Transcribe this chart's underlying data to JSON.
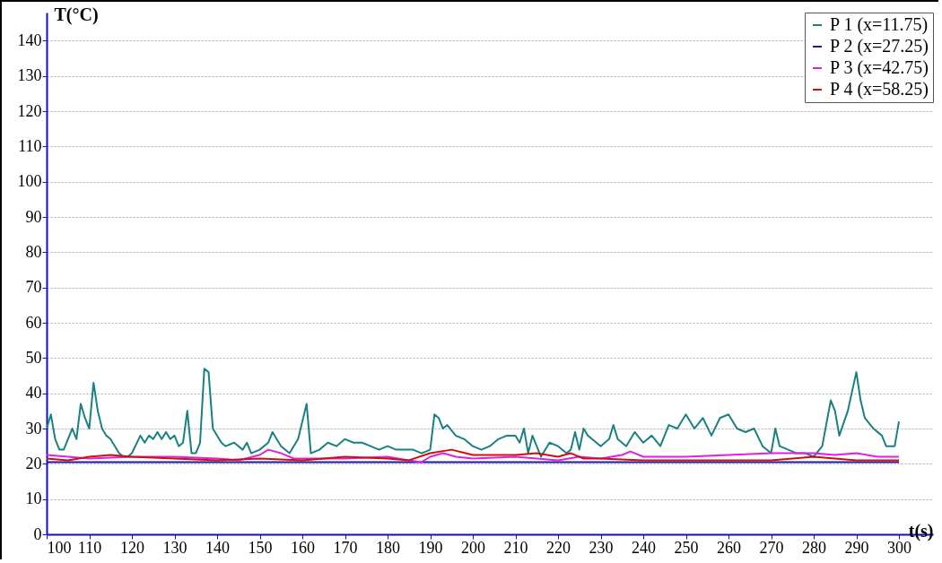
{
  "chart_data": {
    "type": "line",
    "xlabel": "t(s)",
    "ylabel": "T(°C)",
    "xlim": [
      100,
      308
    ],
    "ylim": [
      0,
      148
    ],
    "xticks": [
      100,
      110,
      120,
      130,
      140,
      150,
      160,
      170,
      180,
      190,
      200,
      210,
      220,
      230,
      240,
      250,
      260,
      270,
      280,
      290,
      300
    ],
    "yticks": [
      0,
      10,
      20,
      30,
      40,
      50,
      60,
      70,
      80,
      90,
      100,
      110,
      120,
      130,
      140
    ],
    "grid": "y",
    "legend": "top right",
    "marker": "none",
    "line_style": "solid",
    "series": [
      {
        "name": "P 1 (x=11.75)",
        "color": "#1a8080",
        "x": [
          100,
          101,
          102,
          103,
          104,
          105,
          106,
          107,
          108,
          109,
          110,
          111,
          112,
          113,
          114,
          115,
          116,
          117,
          118,
          119,
          120,
          122,
          123,
          124,
          125,
          126,
          127,
          128,
          129,
          130,
          131,
          132,
          133,
          134,
          135,
          136,
          137,
          138,
          139,
          140,
          141,
          142,
          144,
          146,
          147,
          148,
          150,
          152,
          153,
          155,
          157,
          159,
          160,
          161,
          162,
          164,
          166,
          168,
          170,
          172,
          174,
          176,
          178,
          180,
          182,
          184,
          186,
          188,
          190,
          191,
          192,
          193,
          194,
          196,
          198,
          200,
          202,
          204,
          206,
          208,
          210,
          211,
          212,
          213,
          214,
          216,
          218,
          220,
          222,
          223,
          224,
          225,
          226,
          227,
          228,
          230,
          232,
          233,
          234,
          236,
          238,
          240,
          242,
          244,
          246,
          248,
          250,
          252,
          254,
          256,
          258,
          260,
          262,
          264,
          266,
          268,
          270,
          271,
          272,
          274,
          276,
          278,
          280,
          282,
          284,
          285,
          286,
          288,
          290,
          291,
          292,
          294,
          296,
          297,
          299,
          300
        ],
        "values": [
          30,
          34,
          27,
          24,
          24,
          27,
          30,
          27,
          37,
          33,
          30,
          43,
          35,
          30,
          28,
          27,
          25,
          23,
          22,
          22,
          23,
          28,
          26,
          28,
          27,
          29,
          27,
          29,
          27,
          28,
          25,
          26,
          35,
          23,
          23,
          26,
          47,
          46,
          30,
          28,
          26,
          25,
          26,
          24,
          26,
          23,
          24,
          26,
          29,
          25,
          23,
          27,
          32,
          37,
          23,
          24,
          26,
          25,
          27,
          26,
          26,
          25,
          24,
          25,
          24,
          24,
          24,
          23,
          24,
          34,
          33,
          30,
          31,
          28,
          27,
          25,
          24,
          25,
          27,
          28,
          28,
          26,
          30,
          23,
          28,
          22,
          26,
          25,
          23,
          24,
          29,
          24,
          30,
          28,
          27,
          25,
          27,
          31,
          27,
          25,
          29,
          26,
          28,
          25,
          31,
          30,
          34,
          30,
          33,
          28,
          33,
          34,
          30,
          29,
          30,
          25,
          23,
          30,
          25,
          24,
          23,
          23,
          22,
          25,
          38,
          35,
          28,
          35,
          46,
          38,
          33,
          30,
          28,
          25,
          25,
          32
        ]
      },
      {
        "name": "P 2 (x=27.25)",
        "color": "#1a1a9a",
        "x": [
          100,
          120,
          140,
          160,
          180,
          200,
          220,
          240,
          260,
          280,
          300
        ],
        "values": [
          20.5,
          20.5,
          20.5,
          20.5,
          20.5,
          20.5,
          20.5,
          20.5,
          20.5,
          20.5,
          20.5
        ]
      },
      {
        "name": "P 3 (x=42.75)",
        "color": "#e020e0",
        "x": [
          100,
          105,
          110,
          120,
          130,
          140,
          145,
          150,
          152,
          155,
          158,
          170,
          180,
          185,
          188,
          190,
          193,
          196,
          200,
          210,
          215,
          220,
          225,
          230,
          235,
          237,
          240,
          250,
          260,
          270,
          280,
          285,
          290,
          295,
          300
        ],
        "values": [
          22.5,
          22,
          21.5,
          22,
          22,
          21.5,
          21,
          22.5,
          24,
          23,
          21.5,
          21.5,
          22,
          21,
          20.5,
          22,
          23,
          22,
          21.5,
          22,
          21.5,
          21,
          22,
          21.5,
          22.5,
          23.5,
          22,
          22,
          22.5,
          23,
          23,
          22.5,
          23,
          22,
          22
        ]
      },
      {
        "name": "P 4 (x=58.25)",
        "color": "#cc1010",
        "x": [
          100,
          105,
          110,
          115,
          120,
          130,
          140,
          150,
          160,
          170,
          180,
          185,
          190,
          195,
          200,
          210,
          215,
          220,
          223,
          226,
          230,
          240,
          250,
          260,
          270,
          280,
          285,
          290,
          300
        ],
        "values": [
          21.5,
          21,
          22,
          22.5,
          22,
          21.5,
          21,
          21.5,
          21,
          22,
          21.5,
          21,
          23,
          24,
          22.5,
          22.5,
          23,
          22,
          23,
          21.5,
          21.5,
          21,
          21,
          21,
          21,
          22,
          21.5,
          21,
          21
        ]
      }
    ]
  }
}
